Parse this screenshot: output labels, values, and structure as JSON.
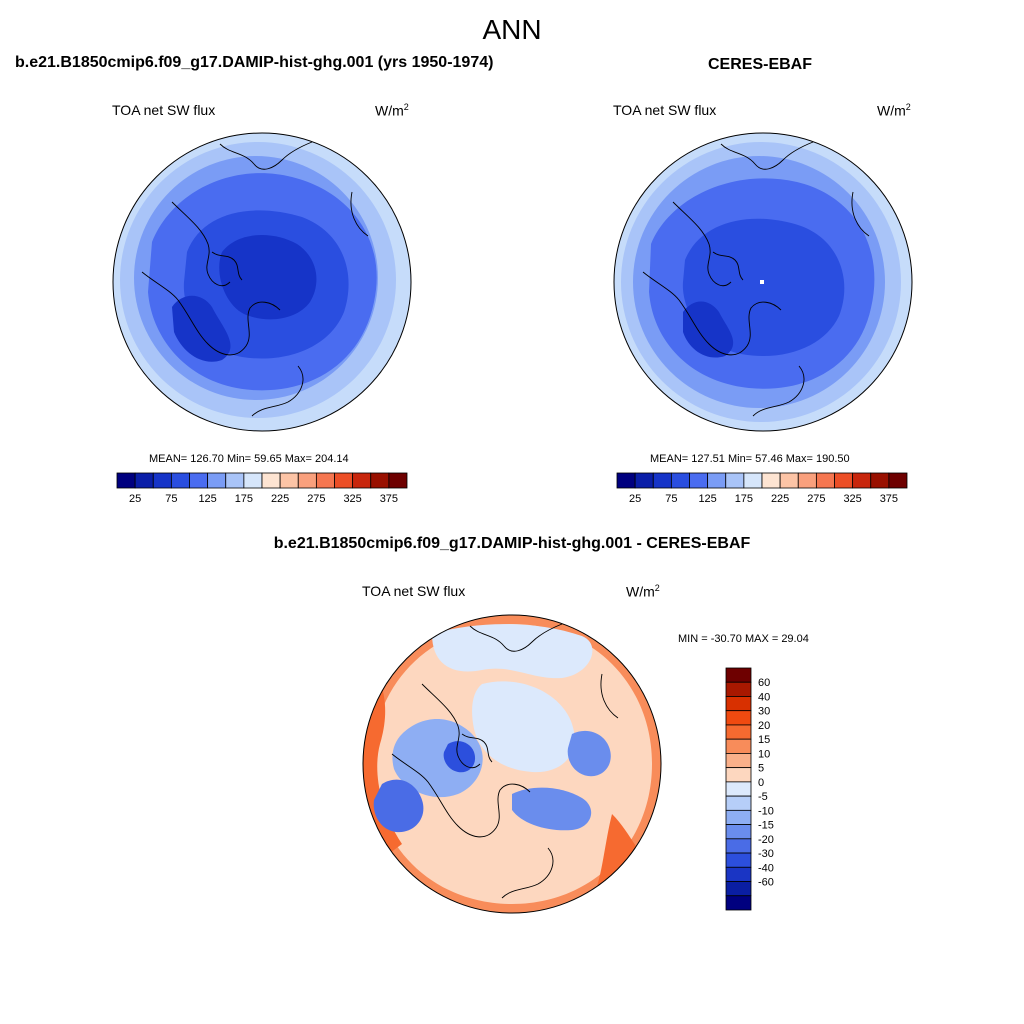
{
  "page": {
    "title": "ANN"
  },
  "panels": [
    {
      "id": "model",
      "title": "b.e21.B1850cmip6.f09_g17.DAMIP-hist-ghg.001 (yrs 1950-1974)",
      "left_label": "TOA net SW flux",
      "units_base": "W/m",
      "units_sup": "2",
      "stats": "MEAN= 126.70  Min=  59.65  Max= 204.14"
    },
    {
      "id": "obs",
      "title": "CERES-EBAF",
      "left_label": "TOA net SW flux",
      "units_base": "W/m",
      "units_sup": "2",
      "stats": "MEAN= 127.51  Min=  57.46  Max= 190.50"
    },
    {
      "id": "diff",
      "title": "b.e21.B1850cmip6.f09_g17.DAMIP-hist-ghg.001 - CERES-EBAF",
      "left_label": "TOA net SW flux",
      "units_base": "W/m",
      "units_sup": "2",
      "stats": "MIN = -30.70 MAX =  29.04"
    }
  ],
  "colorbars": {
    "field": {
      "colors": [
        "#00007f",
        "#0a1ea8",
        "#1634c8",
        "#2a4ee0",
        "#4a6cf0",
        "#7a9cf5",
        "#a9c4f8",
        "#d6e6fb",
        "#fde4d2",
        "#fcc4a6",
        "#f9a07d",
        "#f57650",
        "#ec4e26",
        "#c8260c",
        "#991000",
        "#6e0000"
      ],
      "tick_labels": [
        "25",
        "75",
        "125",
        "175",
        "225",
        "275",
        "325",
        "375"
      ]
    },
    "diff": {
      "colors": [
        "#6e0000",
        "#a81800",
        "#d83000",
        "#f04a10",
        "#f66a30",
        "#f88c5a",
        "#fab08a",
        "#fdd7bf",
        "#dce9fc",
        "#b6cef8",
        "#8eaef3",
        "#6a8ded",
        "#4a6ce6",
        "#2c4fdd",
        "#1a35c4",
        "#0a1ea3",
        "#00007f"
      ],
      "tick_labels": [
        "60",
        "40",
        "30",
        "20",
        "15",
        "10",
        "5",
        "0",
        "-5",
        "-10",
        "-15",
        "-20",
        "-30",
        "-40",
        "-60"
      ]
    }
  }
}
